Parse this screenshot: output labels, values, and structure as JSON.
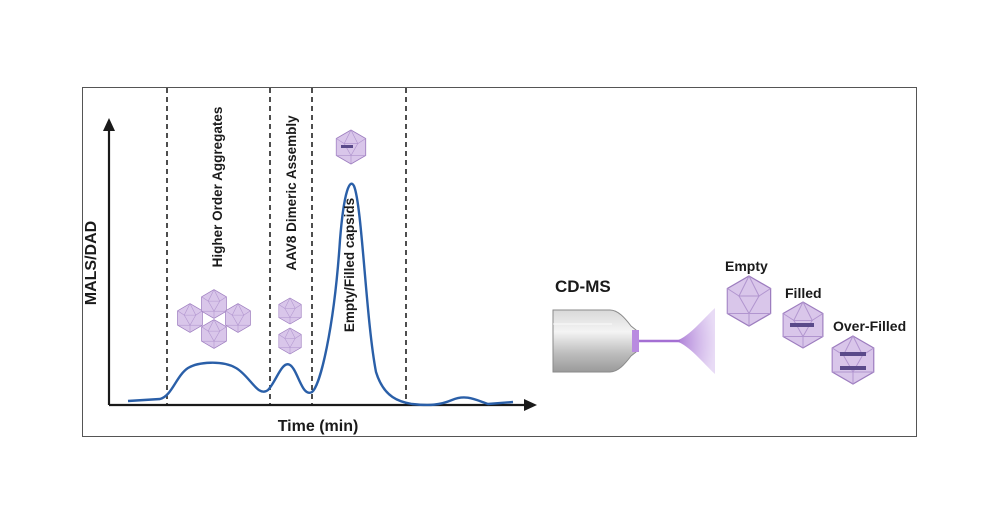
{
  "chart": {
    "y_axis_label": "MALS/DAD",
    "x_axis_label": "Time (min)",
    "regions": [
      {
        "label": "Higher Order Aggregates"
      },
      {
        "label": "AAV8 Dimeric Assembly"
      },
      {
        "label": "Empty/Filled capsids"
      }
    ]
  },
  "cdms": {
    "title": "CD-MS",
    "species": [
      {
        "label": "Empty"
      },
      {
        "label": "Filled"
      },
      {
        "label": "Over-Filled"
      }
    ]
  },
  "colors": {
    "trace": "#2a5fa8",
    "capsid_fill": "#d9c6ea",
    "capsid_stroke": "#9d7dbf",
    "spray": "#b48ad8",
    "axis": "#1a1a1a"
  }
}
